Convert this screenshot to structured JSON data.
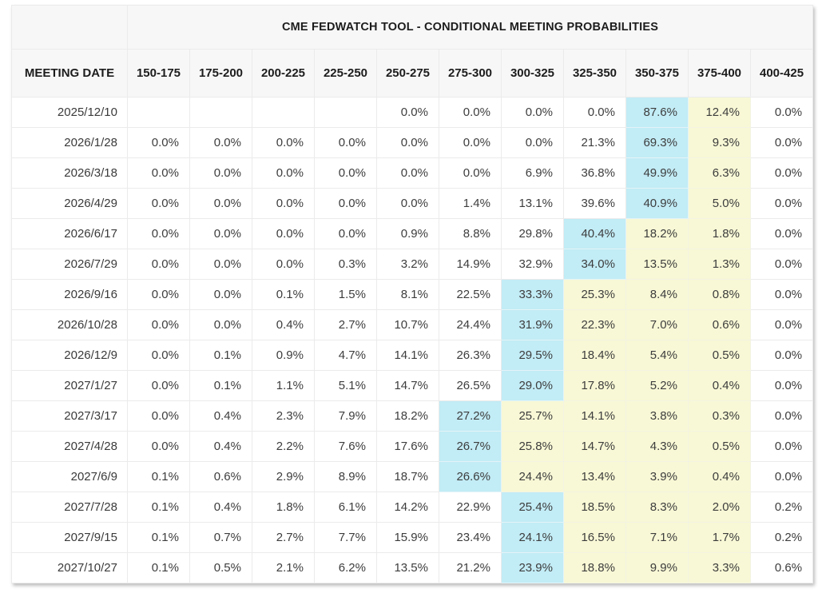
{
  "table": {
    "title": "CME FEDWATCH TOOL - CONDITIONAL MEETING PROBABILITIES",
    "date_column_header": "MEETING DATE",
    "rate_range_headers": [
      "150-175",
      "175-200",
      "200-225",
      "225-250",
      "250-275",
      "275-300",
      "300-325",
      "325-350",
      "350-375",
      "375-400",
      "400-425"
    ],
    "rows": [
      {
        "date": "2025/12/10",
        "values": [
          "",
          "",
          "",
          "",
          "0.0%",
          "0.0%",
          "0.0%",
          "0.0%",
          "87.6%",
          "12.4%",
          "0.0%"
        ],
        "highlight": {
          "blue": 8,
          "yellow": [
            9,
            9
          ]
        }
      },
      {
        "date": "2026/1/28",
        "values": [
          "0.0%",
          "0.0%",
          "0.0%",
          "0.0%",
          "0.0%",
          "0.0%",
          "0.0%",
          "21.3%",
          "69.3%",
          "9.3%",
          "0.0%"
        ],
        "highlight": {
          "blue": 8,
          "yellow": [
            9,
            9
          ]
        }
      },
      {
        "date": "2026/3/18",
        "values": [
          "0.0%",
          "0.0%",
          "0.0%",
          "0.0%",
          "0.0%",
          "0.0%",
          "6.9%",
          "36.8%",
          "49.9%",
          "6.3%",
          "0.0%"
        ],
        "highlight": {
          "blue": 8,
          "yellow": [
            9,
            9
          ]
        }
      },
      {
        "date": "2026/4/29",
        "values": [
          "0.0%",
          "0.0%",
          "0.0%",
          "0.0%",
          "0.0%",
          "1.4%",
          "13.1%",
          "39.6%",
          "40.9%",
          "5.0%",
          "0.0%"
        ],
        "highlight": {
          "blue": 8,
          "yellow": [
            9,
            9
          ]
        }
      },
      {
        "date": "2026/6/17",
        "values": [
          "0.0%",
          "0.0%",
          "0.0%",
          "0.0%",
          "0.9%",
          "8.8%",
          "29.8%",
          "40.4%",
          "18.2%",
          "1.8%",
          "0.0%"
        ],
        "highlight": {
          "blue": 7,
          "yellow": [
            8,
            9
          ]
        }
      },
      {
        "date": "2026/7/29",
        "values": [
          "0.0%",
          "0.0%",
          "0.0%",
          "0.3%",
          "3.2%",
          "14.9%",
          "32.9%",
          "34.0%",
          "13.5%",
          "1.3%",
          "0.0%"
        ],
        "highlight": {
          "blue": 7,
          "yellow": [
            8,
            9
          ]
        }
      },
      {
        "date": "2026/9/16",
        "values": [
          "0.0%",
          "0.0%",
          "0.1%",
          "1.5%",
          "8.1%",
          "22.5%",
          "33.3%",
          "25.3%",
          "8.4%",
          "0.8%",
          "0.0%"
        ],
        "highlight": {
          "blue": 6,
          "yellow": [
            7,
            9
          ]
        }
      },
      {
        "date": "2026/10/28",
        "values": [
          "0.0%",
          "0.0%",
          "0.4%",
          "2.7%",
          "10.7%",
          "24.4%",
          "31.9%",
          "22.3%",
          "7.0%",
          "0.6%",
          "0.0%"
        ],
        "highlight": {
          "blue": 6,
          "yellow": [
            7,
            9
          ]
        }
      },
      {
        "date": "2026/12/9",
        "values": [
          "0.0%",
          "0.1%",
          "0.9%",
          "4.7%",
          "14.1%",
          "26.3%",
          "29.5%",
          "18.4%",
          "5.4%",
          "0.5%",
          "0.0%"
        ],
        "highlight": {
          "blue": 6,
          "yellow": [
            7,
            9
          ]
        }
      },
      {
        "date": "2027/1/27",
        "values": [
          "0.0%",
          "0.1%",
          "1.1%",
          "5.1%",
          "14.7%",
          "26.5%",
          "29.0%",
          "17.8%",
          "5.2%",
          "0.4%",
          "0.0%"
        ],
        "highlight": {
          "blue": 6,
          "yellow": [
            7,
            9
          ]
        }
      },
      {
        "date": "2027/3/17",
        "values": [
          "0.0%",
          "0.4%",
          "2.3%",
          "7.9%",
          "18.2%",
          "27.2%",
          "25.7%",
          "14.1%",
          "3.8%",
          "0.3%",
          "0.0%"
        ],
        "highlight": {
          "blue": 5,
          "yellow": [
            6,
            9
          ]
        }
      },
      {
        "date": "2027/4/28",
        "values": [
          "0.0%",
          "0.4%",
          "2.2%",
          "7.6%",
          "17.6%",
          "26.7%",
          "25.8%",
          "14.7%",
          "4.3%",
          "0.5%",
          "0.0%"
        ],
        "highlight": {
          "blue": 5,
          "yellow": [
            6,
            9
          ]
        }
      },
      {
        "date": "2027/6/9",
        "values": [
          "0.1%",
          "0.6%",
          "2.9%",
          "8.9%",
          "18.7%",
          "26.6%",
          "24.4%",
          "13.4%",
          "3.9%",
          "0.4%",
          "0.0%"
        ],
        "highlight": {
          "blue": 5,
          "yellow": [
            6,
            9
          ]
        }
      },
      {
        "date": "2027/7/28",
        "values": [
          "0.1%",
          "0.4%",
          "1.8%",
          "6.1%",
          "14.2%",
          "22.9%",
          "25.4%",
          "18.5%",
          "8.3%",
          "2.0%",
          "0.2%"
        ],
        "highlight": {
          "blue": 6,
          "yellow": [
            7,
            9
          ]
        }
      },
      {
        "date": "2027/9/15",
        "values": [
          "0.1%",
          "0.7%",
          "2.7%",
          "7.7%",
          "15.9%",
          "23.4%",
          "24.1%",
          "16.5%",
          "7.1%",
          "1.7%",
          "0.2%"
        ],
        "highlight": {
          "blue": 6,
          "yellow": [
            7,
            9
          ]
        }
      },
      {
        "date": "2027/10/27",
        "values": [
          "0.1%",
          "0.5%",
          "2.1%",
          "6.2%",
          "13.5%",
          "21.2%",
          "23.9%",
          "18.8%",
          "9.9%",
          "3.3%",
          "0.6%"
        ],
        "highlight": {
          "blue": 6,
          "yellow": [
            7,
            9
          ]
        }
      }
    ]
  },
  "colors": {
    "max_probability_highlight": "#c2ecf6",
    "right_tail_highlight": "#f8f8d6",
    "header_background": "#f7f7f7"
  }
}
